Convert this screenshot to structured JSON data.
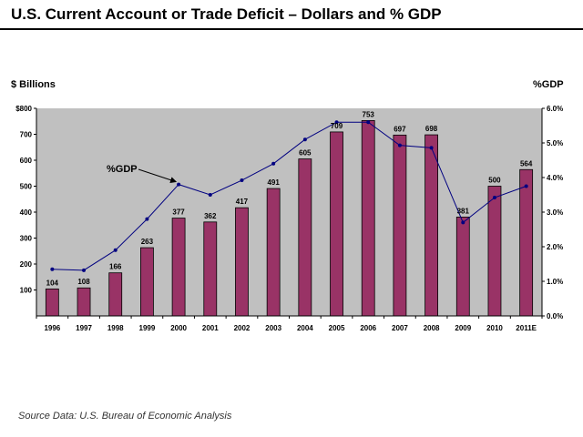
{
  "header": {
    "title": "U.S. Current Account or Trade Deficit – Dollars and % GDP"
  },
  "footer": {
    "source": "Source Data:  U.S. Bureau of Economic Analysis"
  },
  "chart_data": {
    "type": "bar",
    "categories": [
      "1996",
      "1997",
      "1998",
      "1999",
      "2000",
      "2001",
      "2002",
      "2003",
      "2004",
      "2005",
      "2006",
      "2007",
      "2008",
      "2009",
      "2010",
      "2011E"
    ],
    "series": [
      {
        "type": "bar",
        "axis": "left",
        "values": [
          104,
          108,
          166,
          263,
          377,
          362,
          417,
          491,
          605,
          709,
          753,
          697,
          698,
          381,
          500,
          564
        ],
        "labels": [
          "104",
          "108",
          "166",
          "263",
          "377",
          "362",
          "417",
          "491",
          "605",
          "709",
          "753",
          "697",
          "698",
          "381",
          "500",
          "564"
        ],
        "color": "#993366"
      },
      {
        "type": "line",
        "axis": "right",
        "values": [
          1.35,
          1.32,
          1.9,
          2.8,
          3.8,
          3.5,
          3.92,
          4.4,
          5.1,
          5.6,
          5.6,
          4.93,
          4.86,
          2.7,
          3.42,
          3.75
        ],
        "color": "#000080"
      }
    ],
    "ylabel": "$ Billions",
    "ylabel_right": "%GDP",
    "ylim": [
      0,
      800
    ],
    "yticks": [
      100,
      200,
      300,
      400,
      500,
      600,
      700,
      800
    ],
    "ytick_labels": [
      "100",
      "200",
      "300",
      "400",
      "500",
      "600",
      "700",
      "$800"
    ],
    "ylim_right": [
      0,
      6
    ],
    "yticks_right": [
      0,
      1,
      2,
      3,
      4,
      5,
      6
    ],
    "ytick_labels_right": [
      "0.0%",
      "1.0%",
      "2.0%",
      "3.0%",
      "4.0%",
      "5.0%",
      "6.0%"
    ],
    "annotations": [
      {
        "text": "%GDP",
        "points_to_category": "2000"
      }
    ],
    "plot_background": "#c0c0c0",
    "grid": false,
    "legend": "none"
  }
}
